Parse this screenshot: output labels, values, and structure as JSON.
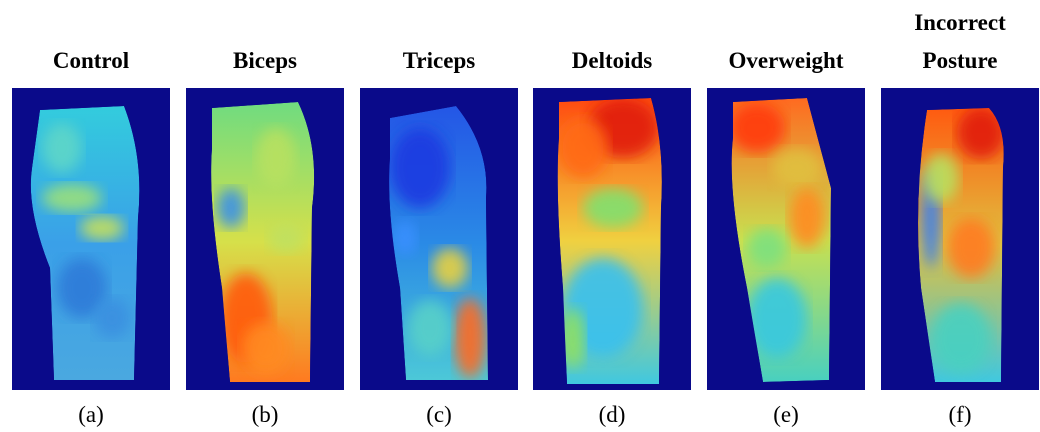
{
  "panels": [
    {
      "title": "Control",
      "label": "(a)"
    },
    {
      "title": "Biceps",
      "label": "(b)"
    },
    {
      "title": "Triceps",
      "label": "(c)"
    },
    {
      "title": "Deltoids",
      "label": "(d)"
    },
    {
      "title": "Overweight",
      "label": "(e)"
    },
    {
      "title": "Incorrect Posture",
      "label": "(f)"
    }
  ]
}
